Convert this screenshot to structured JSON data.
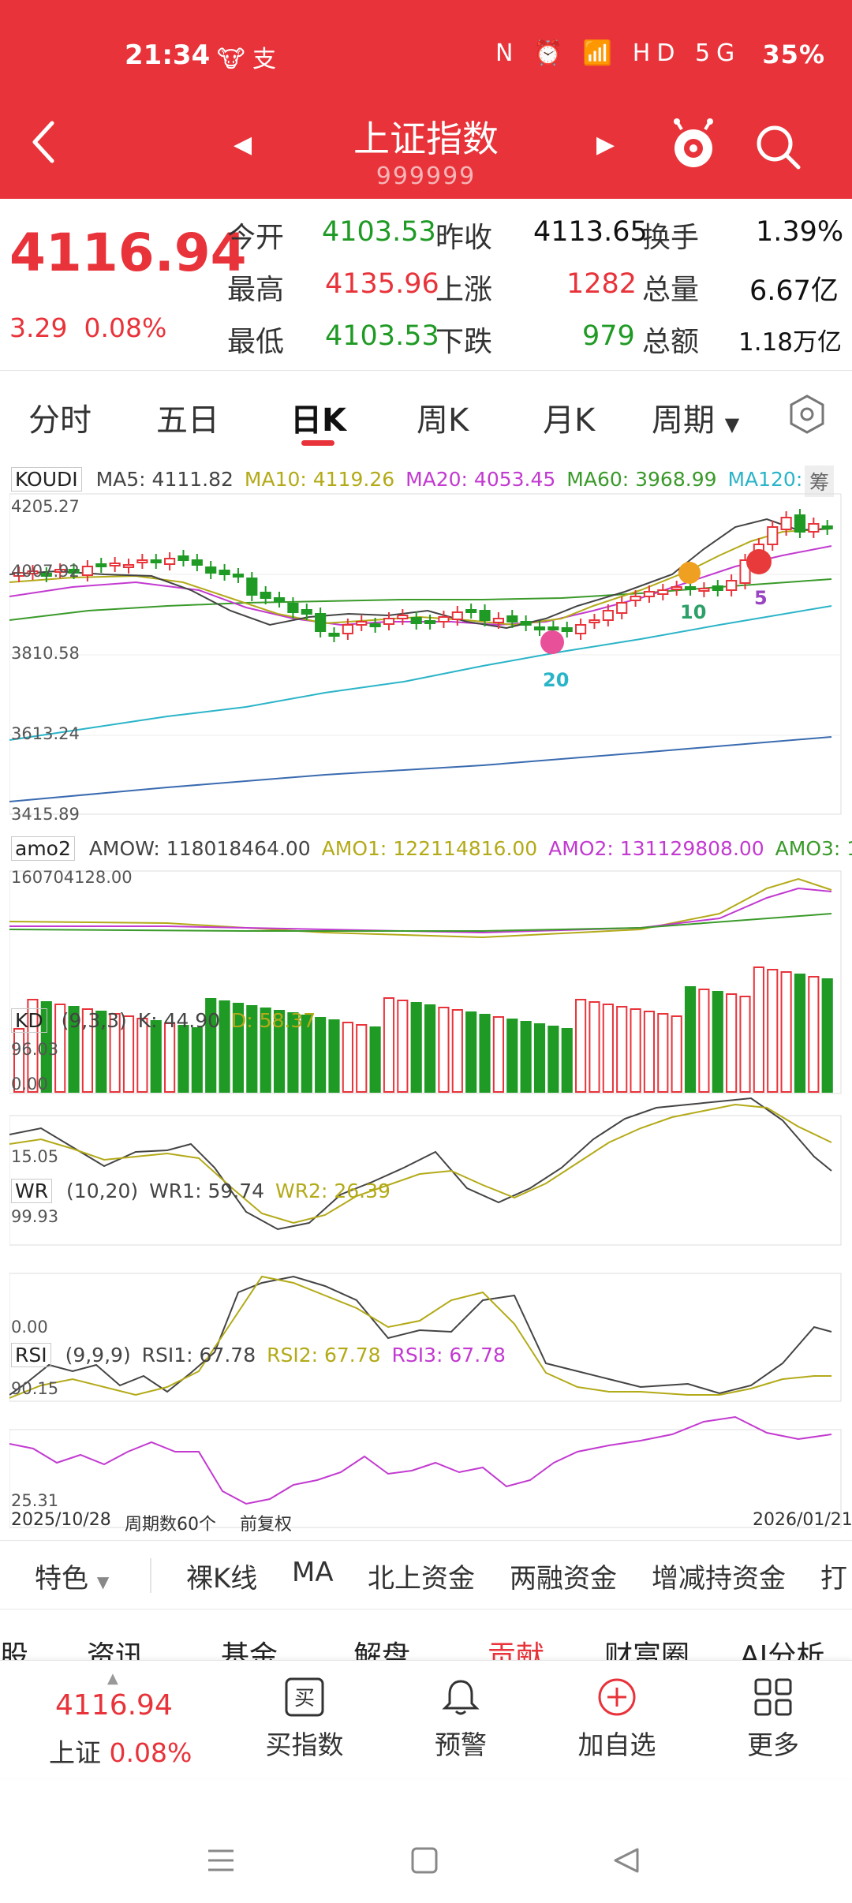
{
  "status_bar": {
    "time": "21:34",
    "apps": "🐮 支",
    "icons": "N ⏰ 📶 HD 5G",
    "battery": "35%"
  },
  "header": {
    "title": "上证指数",
    "code": "999999"
  },
  "quote": {
    "price": "4116.94",
    "change": "3.29",
    "change_pct": "0.08%",
    "open_label": "今开",
    "open": "4103.53",
    "prev_close_label": "昨收",
    "prev_close": "4113.65",
    "turnover_label": "换手",
    "turnover": "1.39%",
    "high_label": "最高",
    "high": "4135.96",
    "up_label": "上涨",
    "up": "1282",
    "volume_label": "总量",
    "volume": "6.67亿",
    "low_label": "最低",
    "low": "4103.53",
    "down_label": "下跌",
    "down": "979",
    "amount_label": "总额",
    "amount": "1.18万亿"
  },
  "tabs": [
    "分时",
    "五日",
    "日K",
    "周K",
    "月K",
    "周期"
  ],
  "kline": {
    "tag": "KOUDI",
    "ma5": "MA5: 4111.82",
    "ma10": "MA10: 4119.26",
    "ma20": "MA20: 4053.45",
    "ma60": "MA60: 3968.99",
    "ma120": "MA120:",
    "chip_label": "筹",
    "y_ticks": [
      "4205.27",
      "4007.92",
      "3810.58",
      "3613.24",
      "3415.89"
    ],
    "badges": [
      "10",
      "5",
      "20"
    ]
  },
  "amo": {
    "tag": "amo2",
    "amow": "AMOW: 118018464.00",
    "amo1": "AMO1: 122114816.00",
    "amo2": "AMO2: 131129808.00",
    "amo3": "AMO3: 1",
    "y_max": "160704128.00",
    "y_min": "0.00"
  },
  "kd": {
    "tag": "KD",
    "params": "(9,3,3)",
    "k": "K: 44.90",
    "d": "D: 58.37",
    "y_max": "96.03",
    "y_min": "15.05"
  },
  "wr": {
    "tag": "WR",
    "params": "(10,20)",
    "wr1": "WR1: 59.74",
    "wr2": "WR2: 26.39",
    "y_max": "99.93",
    "y_min": "0.00"
  },
  "rsi": {
    "tag": "RSI",
    "params": "(9,9,9)",
    "rsi1": "RSI1: 67.78",
    "rsi2": "RSI2: 67.78",
    "rsi3": "RSI3: 67.78",
    "y_max": "90.15",
    "y_min": "25.31"
  },
  "footer_info": {
    "start_date": "2025/10/28",
    "period_count": "周期数60个",
    "adjust": "前复权",
    "end_date": "2026/01/21"
  },
  "features": [
    "特色",
    "裸K线",
    "MA",
    "北上资金",
    "两融资金",
    "增减持资金",
    "打"
  ],
  "content_tabs": [
    "股",
    "资讯",
    "基金",
    "解盘",
    "贡献",
    "财富圈",
    "AI分析"
  ],
  "bottom": {
    "price": "4116.94",
    "name": "上证",
    "pct": "0.08%",
    "buy": "买指数",
    "alert": "预警",
    "add": "加自选",
    "more": "更多"
  },
  "colors": {
    "brand_red": "#e8333a",
    "down_green": "#1f9a24",
    "ma5": "#444444",
    "ma10": "#b3aa18",
    "ma20": "#c23ad0",
    "ma60": "#3a9a2a",
    "ma120": "#2ab4c8"
  }
}
